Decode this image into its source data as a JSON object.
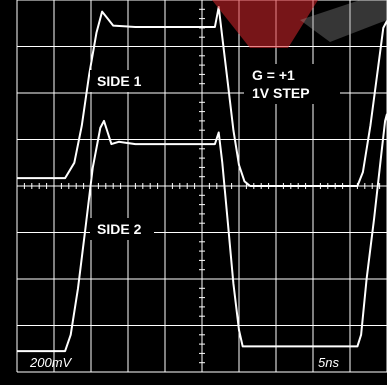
{
  "chart_data": {
    "type": "line",
    "grid": true,
    "divisions": {
      "horizontal": 10,
      "vertical": 8
    },
    "ylim": [
      -4,
      4
    ],
    "xlim": [
      0,
      10
    ],
    "series": [
      {
        "name": "SIDE 1",
        "points": [
          [
            0.0,
            0.17
          ],
          [
            1.3,
            0.17
          ],
          [
            1.55,
            0.5
          ],
          [
            1.75,
            1.3
          ],
          [
            1.95,
            2.4
          ],
          [
            2.15,
            3.3
          ],
          [
            2.3,
            3.75
          ],
          [
            2.45,
            3.6
          ],
          [
            2.6,
            3.45
          ],
          [
            3.2,
            3.42
          ],
          [
            5.35,
            3.42
          ],
          [
            5.45,
            3.85
          ],
          [
            5.55,
            3.2
          ],
          [
            5.7,
            2.2
          ],
          [
            5.85,
            1.2
          ],
          [
            6.0,
            0.45
          ],
          [
            6.15,
            0.1
          ],
          [
            6.3,
            0.0
          ],
          [
            9.2,
            0.0
          ],
          [
            9.35,
            0.3
          ],
          [
            9.55,
            1.3
          ],
          [
            9.75,
            2.5
          ],
          [
            9.9,
            3.4
          ],
          [
            10.0,
            3.55
          ]
        ]
      },
      {
        "name": "SIDE 2",
        "points": [
          [
            0.0,
            -3.55
          ],
          [
            1.3,
            -3.55
          ],
          [
            1.45,
            -3.2
          ],
          [
            1.65,
            -2.2
          ],
          [
            1.85,
            -0.9
          ],
          [
            2.05,
            0.4
          ],
          [
            2.25,
            1.25
          ],
          [
            2.35,
            1.4
          ],
          [
            2.45,
            1.15
          ],
          [
            2.55,
            0.9
          ],
          [
            2.75,
            0.95
          ],
          [
            3.2,
            0.9
          ],
          [
            5.35,
            0.9
          ],
          [
            5.45,
            1.15
          ],
          [
            5.55,
            0.5
          ],
          [
            5.7,
            -0.8
          ],
          [
            5.85,
            -2.1
          ],
          [
            6.0,
            -3.1
          ],
          [
            6.1,
            -3.45
          ],
          [
            6.3,
            -3.45
          ],
          [
            9.2,
            -3.45
          ],
          [
            9.3,
            -3.2
          ],
          [
            9.45,
            -2.0
          ],
          [
            9.65,
            -0.7
          ],
          [
            9.85,
            0.7
          ],
          [
            9.95,
            1.4
          ],
          [
            10.0,
            1.55
          ]
        ]
      }
    ],
    "labels": {
      "side1": "SIDE 1",
      "side2": "SIDE 2",
      "gain": "G = +1",
      "step": "1V STEP",
      "vscale": "200mV",
      "hscale": "5ns"
    },
    "colors": {
      "background": "#000000",
      "grid": "#ffffff",
      "trace": "#ffffff",
      "watermark": "#d8262c"
    }
  }
}
